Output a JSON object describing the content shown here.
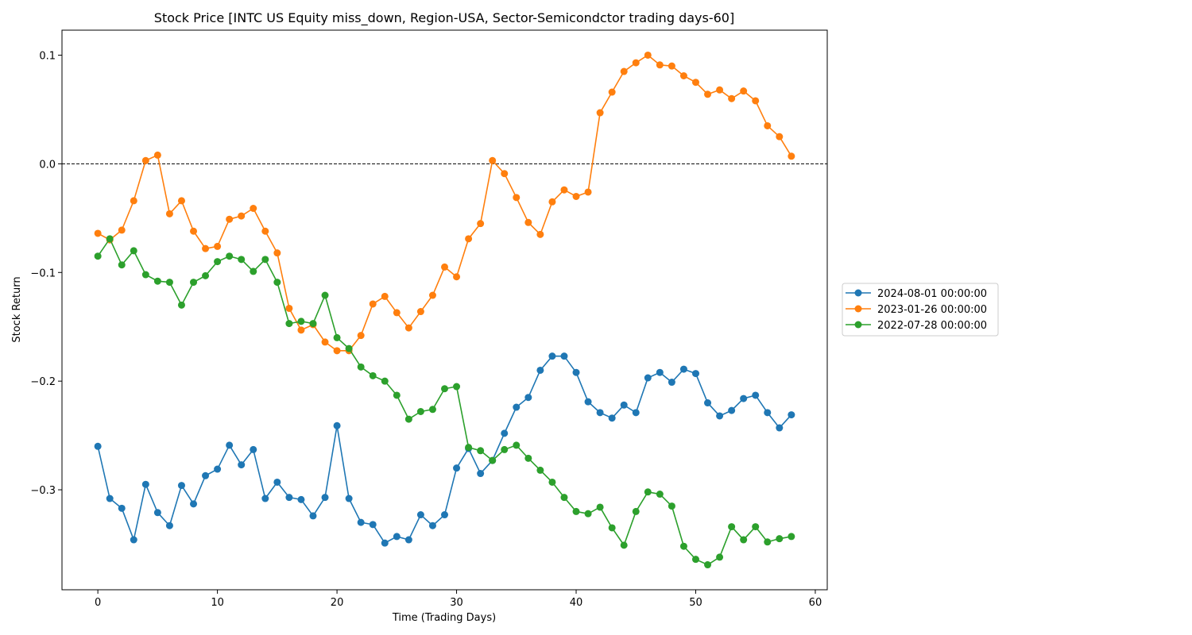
{
  "chart_data": {
    "type": "line",
    "title": "Stock Price [INTC US Equity miss_down, Region-USA, Sector-Semicondctor trading days-60]",
    "xlabel": "Time (Trading Days)",
    "ylabel": "Stock Return",
    "xlim": [
      -3,
      61
    ],
    "ylim": [
      -0.392,
      0.123
    ],
    "xticks": [
      0,
      10,
      20,
      30,
      40,
      50,
      60
    ],
    "xtick_labels": [
      "0",
      "10",
      "20",
      "30",
      "40",
      "50",
      "60"
    ],
    "yticks": [
      -0.3,
      -0.2,
      -0.1,
      0.0,
      0.1
    ],
    "ytick_labels": [
      "−0.3",
      "−0.2",
      "−0.1",
      "0.0",
      "0.1"
    ],
    "reference_line": {
      "y": 0.0,
      "style": "dashed",
      "color": "#000000"
    },
    "legend_position": "right-center",
    "grid": false,
    "x": [
      0,
      1,
      2,
      3,
      4,
      5,
      6,
      7,
      8,
      9,
      10,
      11,
      12,
      13,
      14,
      15,
      16,
      17,
      18,
      19,
      20,
      21,
      22,
      23,
      24,
      25,
      26,
      27,
      28,
      29,
      30,
      31,
      32,
      33,
      34,
      35,
      36,
      37,
      38,
      39,
      40,
      41,
      42,
      43,
      44,
      45,
      46,
      47,
      48,
      49,
      50,
      51,
      52,
      53,
      54,
      55,
      56,
      57,
      58
    ],
    "series": [
      {
        "name": "2024-08-01 00:00:00",
        "color": "#1f77b4",
        "values": [
          -0.26,
          -0.308,
          -0.317,
          -0.346,
          -0.295,
          -0.321,
          -0.333,
          -0.296,
          -0.313,
          -0.287,
          -0.281,
          -0.259,
          -0.277,
          -0.263,
          -0.308,
          -0.293,
          -0.307,
          -0.309,
          -0.324,
          -0.307,
          -0.241,
          -0.308,
          -0.33,
          -0.332,
          -0.349,
          -0.343,
          -0.346,
          -0.323,
          -0.333,
          -0.323,
          -0.28,
          -0.262,
          -0.285,
          -0.273,
          -0.248,
          -0.224,
          -0.215,
          -0.19,
          -0.177,
          -0.177,
          -0.192,
          -0.219,
          -0.229,
          -0.234,
          -0.222,
          -0.229,
          -0.197,
          -0.192,
          -0.201,
          -0.189,
          -0.193,
          -0.22,
          -0.232,
          -0.227,
          -0.216,
          -0.213,
          -0.229,
          -0.243,
          -0.231
        ]
      },
      {
        "name": "2023-01-26 00:00:00",
        "color": "#ff7f0e",
        "values": [
          -0.064,
          -0.07,
          -0.061,
          -0.034,
          0.003,
          0.008,
          -0.046,
          -0.034,
          -0.062,
          -0.078,
          -0.076,
          -0.051,
          -0.048,
          -0.041,
          -0.062,
          -0.082,
          -0.133,
          -0.153,
          -0.148,
          -0.164,
          -0.172,
          -0.172,
          -0.158,
          -0.129,
          -0.122,
          -0.137,
          -0.151,
          -0.136,
          -0.121,
          -0.095,
          -0.104,
          -0.069,
          -0.055,
          0.003,
          -0.009,
          -0.031,
          -0.054,
          -0.065,
          -0.035,
          -0.024,
          -0.03,
          -0.026,
          0.047,
          0.066,
          0.085,
          0.093,
          0.1,
          0.091,
          0.09,
          0.081,
          0.075,
          0.064,
          0.068,
          0.06,
          0.067,
          0.058,
          0.035,
          0.025,
          0.007
        ]
      },
      {
        "name": "2022-07-28 00:00:00",
        "color": "#2ca02c",
        "values": [
          -0.085,
          -0.069,
          -0.093,
          -0.08,
          -0.102,
          -0.108,
          -0.109,
          -0.13,
          -0.109,
          -0.103,
          -0.09,
          -0.085,
          -0.088,
          -0.099,
          -0.088,
          -0.109,
          -0.147,
          -0.145,
          -0.147,
          -0.121,
          -0.16,
          -0.17,
          -0.187,
          -0.195,
          -0.2,
          -0.213,
          -0.235,
          -0.228,
          -0.226,
          -0.207,
          -0.205,
          -0.261,
          -0.264,
          -0.273,
          -0.263,
          -0.259,
          -0.271,
          -0.282,
          -0.293,
          -0.307,
          -0.32,
          -0.322,
          -0.316,
          -0.335,
          -0.351,
          -0.32,
          -0.302,
          -0.304,
          -0.315,
          -0.352,
          -0.364,
          -0.369,
          -0.362,
          -0.334,
          -0.346,
          -0.334,
          -0.348,
          -0.345,
          -0.343
        ]
      }
    ]
  }
}
